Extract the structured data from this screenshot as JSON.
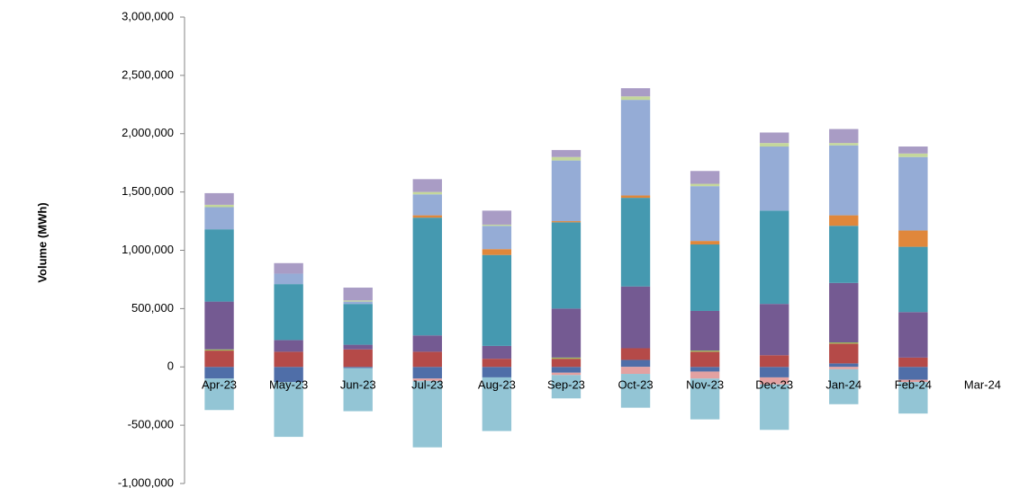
{
  "chart_data": {
    "type": "stacked-bar",
    "y_label": "Volume (MWh)",
    "categories": [
      "Apr-23",
      "May-23",
      "Jun-23",
      "Jul-23",
      "Aug-23",
      "Sep-23",
      "Oct-23",
      "Nov-23",
      "Dec-23",
      "Jan-24",
      "Feb-24",
      "Mar-24"
    ],
    "ylim": [
      -1000000,
      3000000
    ],
    "yticks": [
      {
        "value": -1000000,
        "label": "-1,000,000"
      },
      {
        "value": -500000,
        "label": "-500,000"
      },
      0,
      {
        "value": 500000,
        "label": "500,000"
      },
      {
        "value": 1000000,
        "label": "1,000,000"
      },
      {
        "value": 1500000,
        "label": "1,500,000"
      },
      {
        "value": 2000000,
        "label": "2,000,000"
      },
      {
        "value": 2500000,
        "label": "2,500,000"
      },
      {
        "value": 3000000,
        "label": "3,000,000"
      }
    ],
    "grid": false,
    "series": [
      {
        "color": "#4f6ea8",
        "values": [
          -100000,
          -130000,
          -10000,
          -100000,
          -90000,
          -50000,
          60000,
          -40000,
          -90000,
          30000,
          -110000,
          null
        ]
      },
      {
        "color": "#e3a1a1",
        "values": [
          0,
          0,
          0,
          -20000,
          0,
          -20000,
          -60000,
          -60000,
          -60000,
          -20000,
          -20000,
          null
        ]
      },
      {
        "color": "#b54a48",
        "values": [
          140000,
          130000,
          150000,
          130000,
          70000,
          70000,
          100000,
          130000,
          100000,
          170000,
          80000,
          null
        ]
      },
      {
        "color": "#9bbb59",
        "values": [
          10000,
          0,
          0,
          0,
          0,
          10000,
          0,
          10000,
          0,
          10000,
          0,
          null
        ]
      },
      {
        "color": "#745a92",
        "values": [
          410000,
          100000,
          40000,
          140000,
          110000,
          420000,
          530000,
          340000,
          440000,
          510000,
          390000,
          null
        ]
      },
      {
        "color": "#4599b0",
        "values": [
          620000,
          480000,
          350000,
          1010000,
          780000,
          740000,
          760000,
          570000,
          800000,
          490000,
          560000,
          null
        ]
      },
      {
        "color": "#e0873b",
        "values": [
          0,
          0,
          0,
          20000,
          50000,
          10000,
          20000,
          30000,
          0,
          90000,
          140000,
          null
        ]
      },
      {
        "color": "#95acd6",
        "values": [
          190000,
          90000,
          20000,
          180000,
          200000,
          520000,
          820000,
          470000,
          550000,
          600000,
          630000,
          null
        ]
      },
      {
        "color": "#c4d79b",
        "values": [
          20000,
          0,
          10000,
          20000,
          10000,
          30000,
          30000,
          20000,
          30000,
          20000,
          30000,
          null
        ]
      },
      {
        "color": "#a99cc5",
        "values": [
          100000,
          90000,
          110000,
          110000,
          120000,
          60000,
          70000,
          110000,
          90000,
          120000,
          60000,
          null
        ]
      },
      {
        "color": "#93c5d5",
        "values": [
          -270000,
          -470000,
          -370000,
          -570000,
          -460000,
          -200000,
          -290000,
          -350000,
          -390000,
          -300000,
          -270000,
          null
        ]
      }
    ]
  }
}
